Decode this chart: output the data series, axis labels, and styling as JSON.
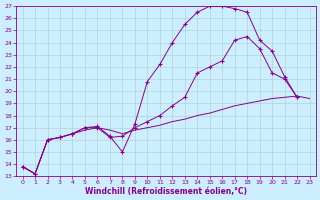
{
  "xlabel": "Windchill (Refroidissement éolien,°C)",
  "bg_color": "#cceeff",
  "line_color": "#880088",
  "grid_color": "#aacccc",
  "xlim": [
    -0.5,
    23.5
  ],
  "ylim": [
    13,
    27
  ],
  "yticks": [
    13,
    14,
    15,
    16,
    17,
    18,
    19,
    20,
    21,
    22,
    23,
    24,
    25,
    26,
    27
  ],
  "xticks": [
    0,
    1,
    2,
    3,
    4,
    5,
    6,
    7,
    8,
    9,
    10,
    11,
    12,
    13,
    14,
    15,
    16,
    17,
    18,
    19,
    20,
    21,
    22,
    23
  ],
  "series": [
    {
      "x": [
        0,
        1,
        2,
        3,
        4,
        5,
        6,
        7,
        8,
        9,
        10,
        11,
        12,
        13,
        14,
        15,
        16,
        17,
        18,
        19,
        20,
        21,
        22,
        23
      ],
      "y": [
        13.8,
        13.2,
        16.0,
        16.2,
        16.5,
        16.8,
        17.0,
        16.8,
        16.5,
        16.8,
        17.0,
        17.2,
        17.5,
        17.7,
        18.0,
        18.2,
        18.5,
        18.8,
        19.0,
        19.2,
        19.4,
        19.5,
        19.6,
        19.4
      ],
      "has_markers": false
    },
    {
      "x": [
        0,
        1,
        2,
        3,
        4,
        5,
        6,
        7,
        8,
        9,
        10,
        11,
        12,
        13,
        14,
        15,
        16,
        17,
        18,
        19,
        20,
        21,
        22
      ],
      "y": [
        13.8,
        13.2,
        16.0,
        16.2,
        16.5,
        17.0,
        17.1,
        16.3,
        15.0,
        17.3,
        20.8,
        22.2,
        24.0,
        25.5,
        26.5,
        27.0,
        27.0,
        26.8,
        26.5,
        24.2,
        23.3,
        21.2,
        19.5
      ],
      "has_markers": true
    },
    {
      "x": [
        0,
        1,
        2,
        3,
        4,
        5,
        6,
        7,
        8,
        9,
        10,
        11,
        12,
        13,
        14,
        15,
        16,
        17,
        18,
        19,
        20,
        21,
        22
      ],
      "y": [
        13.8,
        13.2,
        16.0,
        16.2,
        16.5,
        17.0,
        17.0,
        16.2,
        16.3,
        17.0,
        17.5,
        18.0,
        18.8,
        19.5,
        21.5,
        22.0,
        22.5,
        24.2,
        24.5,
        23.5,
        21.5,
        21.0,
        19.5
      ],
      "has_markers": true
    }
  ]
}
